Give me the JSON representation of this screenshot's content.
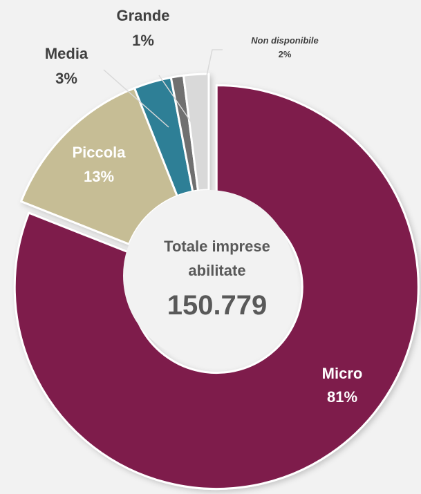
{
  "chart_data": {
    "type": "donut",
    "center": {
      "title_line1": "Totale imprese",
      "title_line2": "abilitate",
      "value": "150.779"
    },
    "slices": [
      {
        "name": "Micro",
        "value": 81,
        "label": "81%",
        "color": "#7e1a4b",
        "exploded": true
      },
      {
        "name": "Piccola",
        "value": 13,
        "label": "13%",
        "color": "#c6bd95",
        "exploded": false
      },
      {
        "name": "Media",
        "value": 3,
        "label": "3%",
        "color": "#2e7f96",
        "exploded": false
      },
      {
        "name": "Grande",
        "value": 1,
        "label": "1%",
        "color": "#6f6f6f",
        "exploded": false
      },
      {
        "name": "Non disponibile",
        "value": 2,
        "label": "2%",
        "color": "#d9d9d9",
        "exploded": false
      }
    ],
    "label_colors": {
      "inside": "#ffffff",
      "outside": "#404040"
    }
  }
}
